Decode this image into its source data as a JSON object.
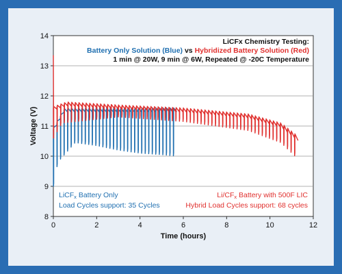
{
  "chart_data": {
    "type": "line",
    "title_lines": [
      {
        "parts": [
          {
            "text": "LiCFx Chemistry Testing:",
            "color": "#111111"
          }
        ]
      },
      {
        "parts": [
          {
            "text": "Battery Only Solution (Blue)",
            "color": "#1f6fb0"
          },
          {
            "text": " vs ",
            "color": "#111111"
          },
          {
            "text": "Hybridized Battery Solution (Red)",
            "color": "#e0302e"
          }
        ]
      },
      {
        "parts": [
          {
            "text": "1 min @ 20W, 9 min @ 6W, Repeated @ -20C Temperature",
            "color": "#111111"
          }
        ]
      }
    ],
    "xlabel": "Time (hours)",
    "ylabel": "Voltage (V)",
    "xlim": [
      0,
      12
    ],
    "ylim": [
      8,
      14
    ],
    "xticks": [
      "0",
      "2",
      "4",
      "6",
      "8",
      "10",
      "12"
    ],
    "yticks": [
      "8",
      "9",
      "10",
      "11",
      "12",
      "13",
      "14"
    ],
    "grid": "horizontal",
    "series": [
      {
        "color": "#1f6fb0",
        "cycles": 35,
        "cycle_hours": 0.1667,
        "start_plateau": [
          [
            0,
            10.9
          ],
          [
            0.5,
            11.55
          ],
          [
            1.5,
            11.55
          ],
          [
            3.5,
            11.55
          ],
          [
            5.7,
            11.55
          ]
        ],
        "pulse_low": [
          [
            0,
            9.0
          ],
          [
            0.2,
            9.8
          ],
          [
            1.0,
            10.45
          ],
          [
            2.0,
            10.35
          ],
          [
            3.0,
            10.2
          ],
          [
            4.0,
            10.1
          ],
          [
            5.0,
            10.05
          ],
          [
            5.7,
            10.0
          ]
        ],
        "end_hours": 5.7
      },
      {
        "color": "#e0302e",
        "cycles": 68,
        "cycle_hours": 0.1667,
        "start_peak_voltage": 13.35,
        "start_plateau": [
          [
            0,
            11.6
          ],
          [
            0.6,
            11.75
          ],
          [
            3,
            11.65
          ],
          [
            6,
            11.55
          ],
          [
            9,
            11.35
          ],
          [
            10.5,
            11.05
          ],
          [
            11.3,
            10.6
          ]
        ],
        "pulse_low": [
          [
            0,
            10.6
          ],
          [
            0.4,
            11.1
          ],
          [
            3,
            11.3
          ],
          [
            6,
            11.15
          ],
          [
            9,
            10.85
          ],
          [
            10.5,
            10.45
          ],
          [
            11.3,
            9.9
          ]
        ],
        "end_hours": 11.3
      }
    ],
    "annotations": [
      {
        "lines": [
          {
            "parts": [
              {
                "text": "LiCF",
                "sub": false
              },
              {
                "text": "x",
                "sub": true
              },
              {
                "text": " Battery Only",
                "sub": false
              }
            ]
          },
          {
            "parts": [
              {
                "text": "Load Cycles support: 35 Cycles",
                "sub": false
              }
            ]
          }
        ],
        "color": "#1f6fb0",
        "anchor": "bottom-left"
      },
      {
        "lines": [
          {
            "parts": [
              {
                "text": "Li/CF",
                "sub": false
              },
              {
                "text": "x",
                "sub": true
              },
              {
                "text": " Battery with 500F LIC",
                "sub": false
              }
            ]
          },
          {
            "parts": [
              {
                "text": "Hybrid Load Cycles support: 68 cycles",
                "sub": false
              }
            ]
          }
        ],
        "color": "#e0302e",
        "anchor": "bottom-right"
      }
    ]
  }
}
